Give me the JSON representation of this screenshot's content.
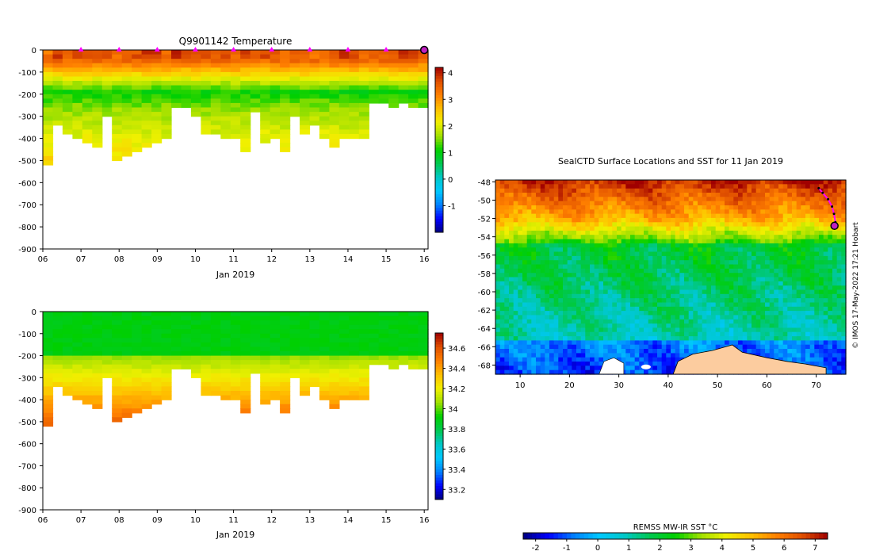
{
  "chart_data": [
    {
      "type": "heatmap",
      "title": "Q9901142  Temperature",
      "xlabel": "Jan 2019",
      "ylabel": "",
      "x_tick_labels": [
        "06",
        "07",
        "08",
        "09",
        "10",
        "11",
        "12",
        "13",
        "14",
        "15",
        "16"
      ],
      "x_ticks": [
        6,
        7,
        8,
        9,
        10,
        11,
        12,
        13,
        14,
        15,
        16
      ],
      "xlim": [
        6,
        16.1
      ],
      "y_tick_labels": [
        "0",
        "-100",
        "-200",
        "-300",
        "-400",
        "-500",
        "-600",
        "-700",
        "-800",
        "-900"
      ],
      "y_ticks": [
        0,
        -100,
        -200,
        -300,
        -400,
        -500,
        -600,
        -700,
        -800,
        -900
      ],
      "ylim": [
        -900,
        0
      ],
      "colorbar": {
        "ticks": [
          4,
          3,
          2,
          1,
          0,
          -1
        ],
        "labels": [
          "4",
          "3",
          "2",
          "1",
          "0",
          "-1"
        ],
        "range": [
          -2,
          4.2
        ]
      },
      "surface_markers_day": [
        7,
        8,
        9,
        10,
        11,
        12,
        13,
        14,
        15
      ],
      "highlight_marker_day": 16,
      "profile_depths": [
        -520,
        -330,
        -380,
        -400,
        -415,
        -430,
        -300,
        -490,
        -470,
        -460,
        -430,
        -420,
        -400,
        -250,
        -260,
        -300,
        -370,
        -380,
        -390,
        -400,
        -460,
        -280,
        -420,
        -400,
        -450,
        -300,
        -380,
        -340,
        -390,
        -430,
        -400,
        -400,
        -400,
        -240,
        -240,
        -260,
        -230,
        -260,
        -250
      ]
    },
    {
      "type": "heatmap",
      "title": "",
      "xlabel": "Jan 2019",
      "x_tick_labels": [
        "06",
        "07",
        "08",
        "09",
        "10",
        "11",
        "12",
        "13",
        "14",
        "15",
        "16"
      ],
      "x_ticks": [
        6,
        7,
        8,
        9,
        10,
        11,
        12,
        13,
        14,
        15,
        16
      ],
      "xlim": [
        6,
        16.1
      ],
      "y_tick_labels": [
        "0",
        "-100",
        "-200",
        "-300",
        "-400",
        "-500",
        "-600",
        "-700",
        "-800",
        "-900"
      ],
      "y_ticks": [
        0,
        -100,
        -200,
        -300,
        -400,
        -500,
        -600,
        -700,
        -800,
        -900
      ],
      "ylim": [
        -900,
        0
      ],
      "colorbar": {
        "ticks": [
          34.6,
          34.4,
          34.2,
          34,
          33.8,
          33.6,
          33.4,
          33.2
        ],
        "labels": [
          "34.6",
          "34.4",
          "34.2",
          "34",
          "33.8",
          "33.6",
          "33.4",
          "33.2"
        ],
        "range": [
          33.1,
          34.75
        ]
      }
    },
    {
      "type": "heatmap",
      "title": "SealCTD Surface Locations and SST for 11 Jan 2019",
      "x_tick_labels": [
        "10",
        "20",
        "30",
        "40",
        "50",
        "60",
        "70"
      ],
      "x_ticks": [
        10,
        20,
        30,
        40,
        50,
        60,
        70
      ],
      "xlim": [
        5,
        76
      ],
      "y_tick_labels": [
        "-48",
        "-50",
        "-52",
        "-54",
        "-56",
        "-58",
        "-60",
        "-62",
        "-64",
        "-66",
        "-68"
      ],
      "y_ticks": [
        -48,
        -50,
        -52,
        -54,
        -56,
        -58,
        -60,
        -62,
        -64,
        -66,
        -68
      ],
      "ylim": [
        -69,
        -47.8
      ],
      "colorbar_title": "REMSS MW-IR SST °C",
      "colorbar": {
        "ticks": [
          -2,
          -1,
          0,
          1,
          2,
          3,
          4,
          5,
          6,
          7
        ],
        "labels": [
          "-2",
          "-1",
          "0",
          "1",
          "2",
          "3",
          "4",
          "5",
          "6",
          "7"
        ],
        "range": [
          -2.4,
          7.4
        ]
      },
      "track_points": [
        [
          70.5,
          -48.7
        ],
        [
          71.3,
          -49.2
        ],
        [
          72.4,
          -49.9
        ],
        [
          73.2,
          -50.7
        ],
        [
          73.6,
          -51.5
        ],
        [
          73.9,
          -52.4
        ],
        [
          73.7,
          -52.8
        ]
      ],
      "highlight_point": [
        73.7,
        -52.8
      ],
      "credit": "© IMOS 17-May-2022 17:21 Hobart"
    }
  ]
}
